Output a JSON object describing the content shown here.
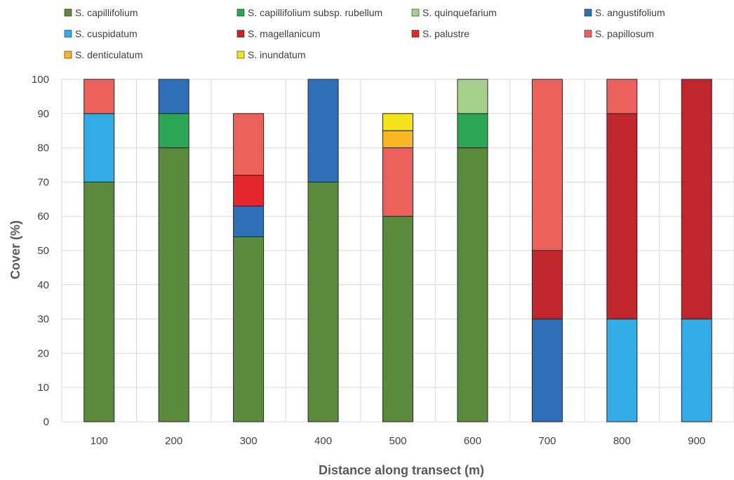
{
  "chart_data": {
    "type": "bar",
    "stacked": true,
    "xlabel": "Distance along transect (m)",
    "ylabel": "Cover (%)",
    "ylim": [
      0,
      100
    ],
    "yticks": [
      0,
      10,
      20,
      30,
      40,
      50,
      60,
      70,
      80,
      90,
      100
    ],
    "grid": true,
    "legend_position": "top",
    "categories": [
      "100",
      "200",
      "300",
      "400",
      "500",
      "600",
      "700",
      "800",
      "900"
    ],
    "series": [
      {
        "name": "S. capillifolium",
        "color": "#5a8a3c",
        "values": [
          70,
          80,
          54,
          70,
          60,
          80,
          0,
          0,
          0
        ]
      },
      {
        "name": "S. capillifolium subsp. rubellum",
        "color": "#2aa655",
        "values": [
          0,
          10,
          0,
          0,
          0,
          10,
          0,
          0,
          0
        ]
      },
      {
        "name": "S. quinquefarium",
        "color": "#a5cf8a",
        "values": [
          0,
          0,
          0,
          0,
          0,
          10,
          0,
          0,
          0
        ]
      },
      {
        "name": "S. angustifolium",
        "color": "#2e6fb7",
        "values": [
          0,
          10,
          9,
          30,
          0,
          0,
          30,
          0,
          0
        ]
      },
      {
        "name": "S. cuspidatum",
        "color": "#33ace6",
        "values": [
          20,
          0,
          0,
          0,
          0,
          0,
          0,
          30,
          30
        ]
      },
      {
        "name": "S. magellanicum",
        "color": "#c0262b",
        "values": [
          0,
          0,
          0,
          0,
          0,
          0,
          20,
          60,
          70
        ]
      },
      {
        "name": "S. palustre",
        "color": "#e5262c",
        "values": [
          0,
          0,
          9,
          0,
          0,
          0,
          0,
          0,
          0
        ]
      },
      {
        "name": "S. papillosum",
        "color": "#ed615d",
        "values": [
          10,
          0,
          18,
          0,
          20,
          0,
          50,
          10,
          0
        ]
      },
      {
        "name": "S. denticulatum",
        "color": "#f9b622",
        "values": [
          0,
          0,
          0,
          0,
          5,
          0,
          0,
          0,
          0
        ]
      },
      {
        "name": "S. inundatum",
        "color": "#f4e31b",
        "values": [
          0,
          0,
          0,
          0,
          5,
          0,
          0,
          0,
          0
        ]
      }
    ]
  }
}
